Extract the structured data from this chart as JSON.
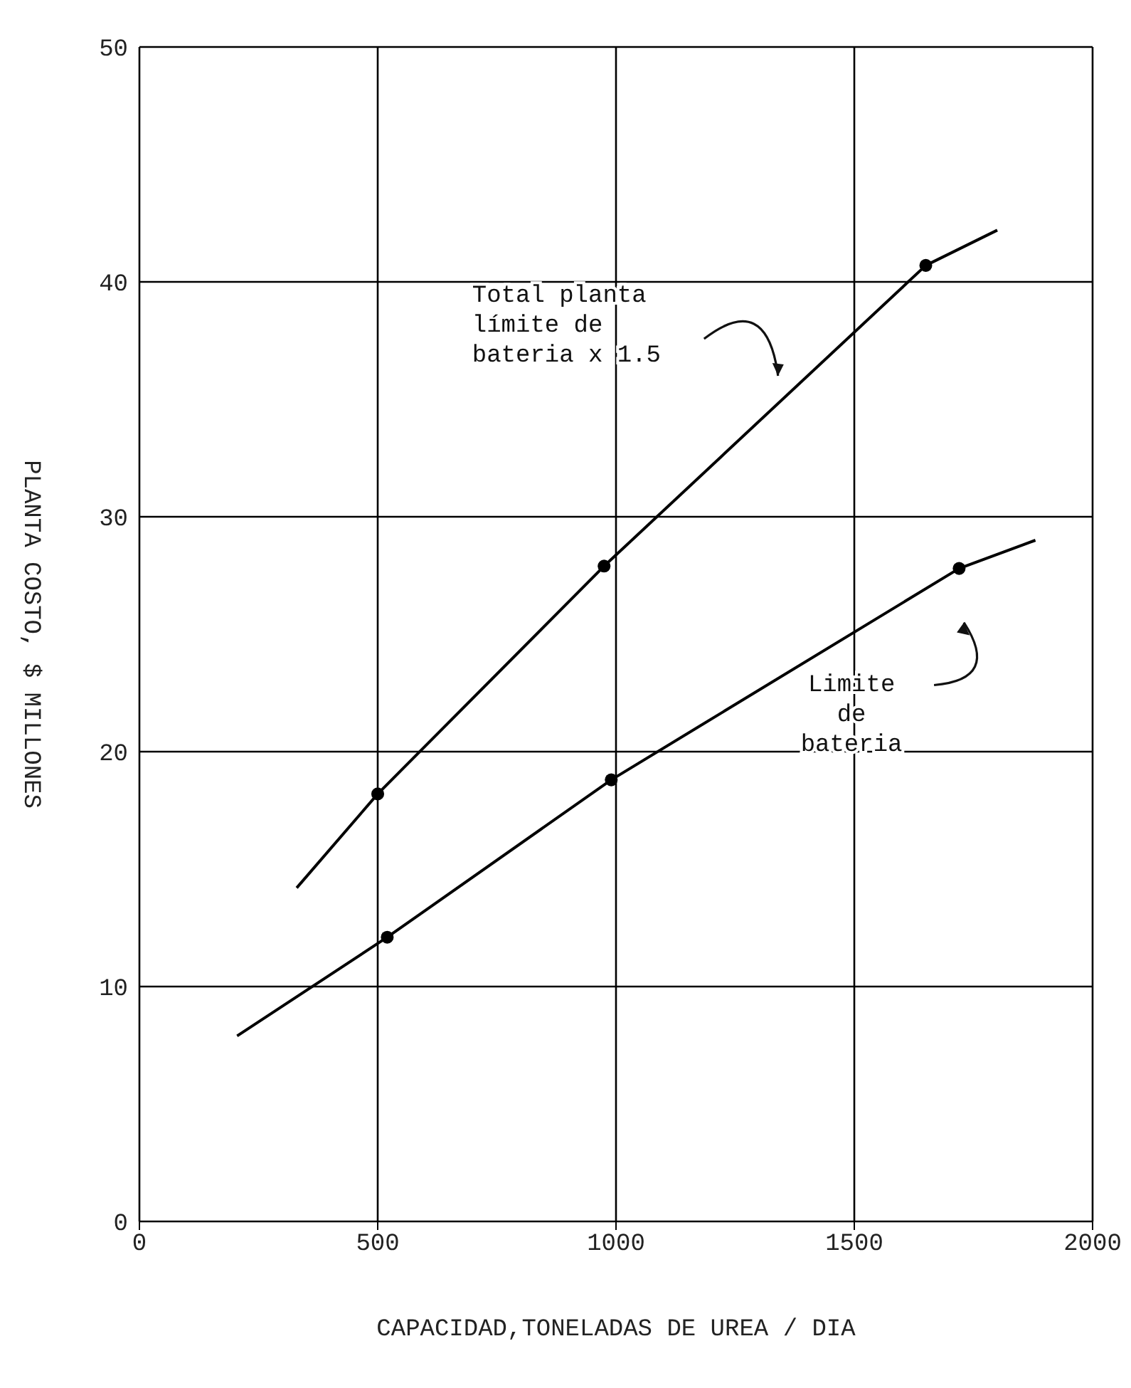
{
  "chart_data": {
    "type": "line",
    "xlabel": "CAPACIDAD,TONELADAS DE UREA / DIA",
    "ylabel": "PLANTA COSTO, $ MILLONES",
    "xlim": [
      0,
      2000
    ],
    "xticks": [
      0,
      500,
      1000,
      1500,
      2000
    ],
    "ylim": [
      0,
      50
    ],
    "yticks": [
      0,
      10,
      20,
      30,
      40,
      50
    ],
    "grid": true,
    "line_style": "solid",
    "series": [
      {
        "marker": "none",
        "color": "#000000",
        "x": [
          330,
          500,
          975,
          1650,
          1800
        ],
        "values": [
          14.2,
          18.2,
          27.9,
          40.7,
          42.2
        ]
      },
      {
        "marker": "none",
        "color": "#000000",
        "x": [
          205,
          520,
          990,
          1720,
          1880
        ],
        "values": [
          7.9,
          12.1,
          18.8,
          27.8,
          29
        ]
      },
      {
        "type": "scatter",
        "marker": "circle",
        "color": "#000000",
        "x": [
          500,
          975,
          1650
        ],
        "values": [
          18.2,
          27.9,
          40.7
        ]
      },
      {
        "type": "scatter",
        "marker": "circle",
        "color": "#000000",
        "x": [
          520,
          990,
          1720
        ],
        "values": [
          12.1,
          18.8,
          27.8
        ]
      }
    ],
    "annotations": [
      "Total planta\nlímite de\nbateria x 1.5",
      "Limite\nde\nbateria"
    ]
  }
}
